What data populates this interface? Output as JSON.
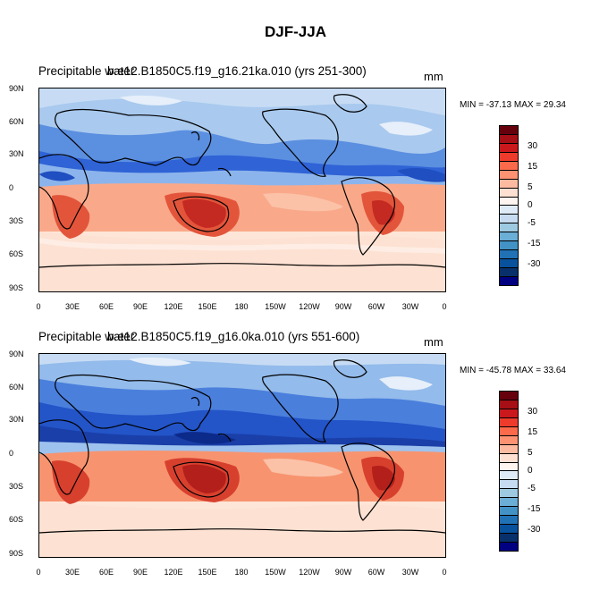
{
  "title": "DJF-JJA",
  "panels": [
    {
      "left_label": "Precipitable water",
      "center_label": "b.e12.B1850C5.f19_g16.21ka.010 (yrs 251-300)",
      "units": "mm",
      "stats": "MIN = -37.13 MAX =  29.34"
    },
    {
      "left_label": "Precipitable water",
      "center_label": "b.e12.B1850C5.f19_g16.0ka.010 (yrs 551-600)",
      "units": "mm",
      "stats": "MIN = -45.78 MAX =  33.64"
    }
  ],
  "lat_ticks": [
    "90N",
    "60N",
    "30N",
    "0",
    "30S",
    "60S",
    "90S"
  ],
  "lon_ticks": [
    "0",
    "30E",
    "60E",
    "90E",
    "120E",
    "150E",
    "180",
    "150W",
    "120W",
    "90W",
    "60W",
    "30W",
    "0"
  ],
  "colorbar": {
    "labels": [
      "30",
      "15",
      "5",
      "0",
      "-5",
      "-15",
      "-30"
    ],
    "colors": [
      "#67000d",
      "#a50f15",
      "#cb181d",
      "#ef3b2c",
      "#fb6a4a",
      "#fc9272",
      "#fcbba1",
      "#fee0d2",
      "#fff5f0",
      "#deebf7",
      "#c6dbef",
      "#9ecae1",
      "#6baed6",
      "#4292c6",
      "#2171b5",
      "#08519c",
      "#08306b",
      "#000080"
    ]
  }
}
